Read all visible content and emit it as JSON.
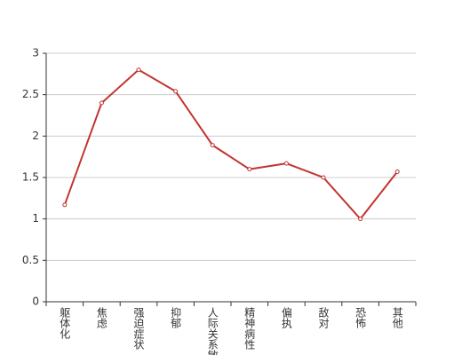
{
  "chart_data": {
    "type": "line",
    "categories": [
      "躯体化",
      "焦虑",
      "强迫症状",
      "抑郁",
      "人际关系敏感",
      "精神病性",
      "偏执",
      "敌对",
      "恐怖",
      "其他"
    ],
    "values": [
      1.17,
      2.4,
      2.8,
      2.54,
      1.89,
      1.6,
      1.67,
      1.5,
      1.0,
      1.57
    ],
    "color": "#c23531",
    "ylim": [
      0,
      3
    ],
    "yticks": [
      0,
      0.5,
      1,
      1.5,
      2,
      2.5,
      3
    ],
    "grid": true
  }
}
